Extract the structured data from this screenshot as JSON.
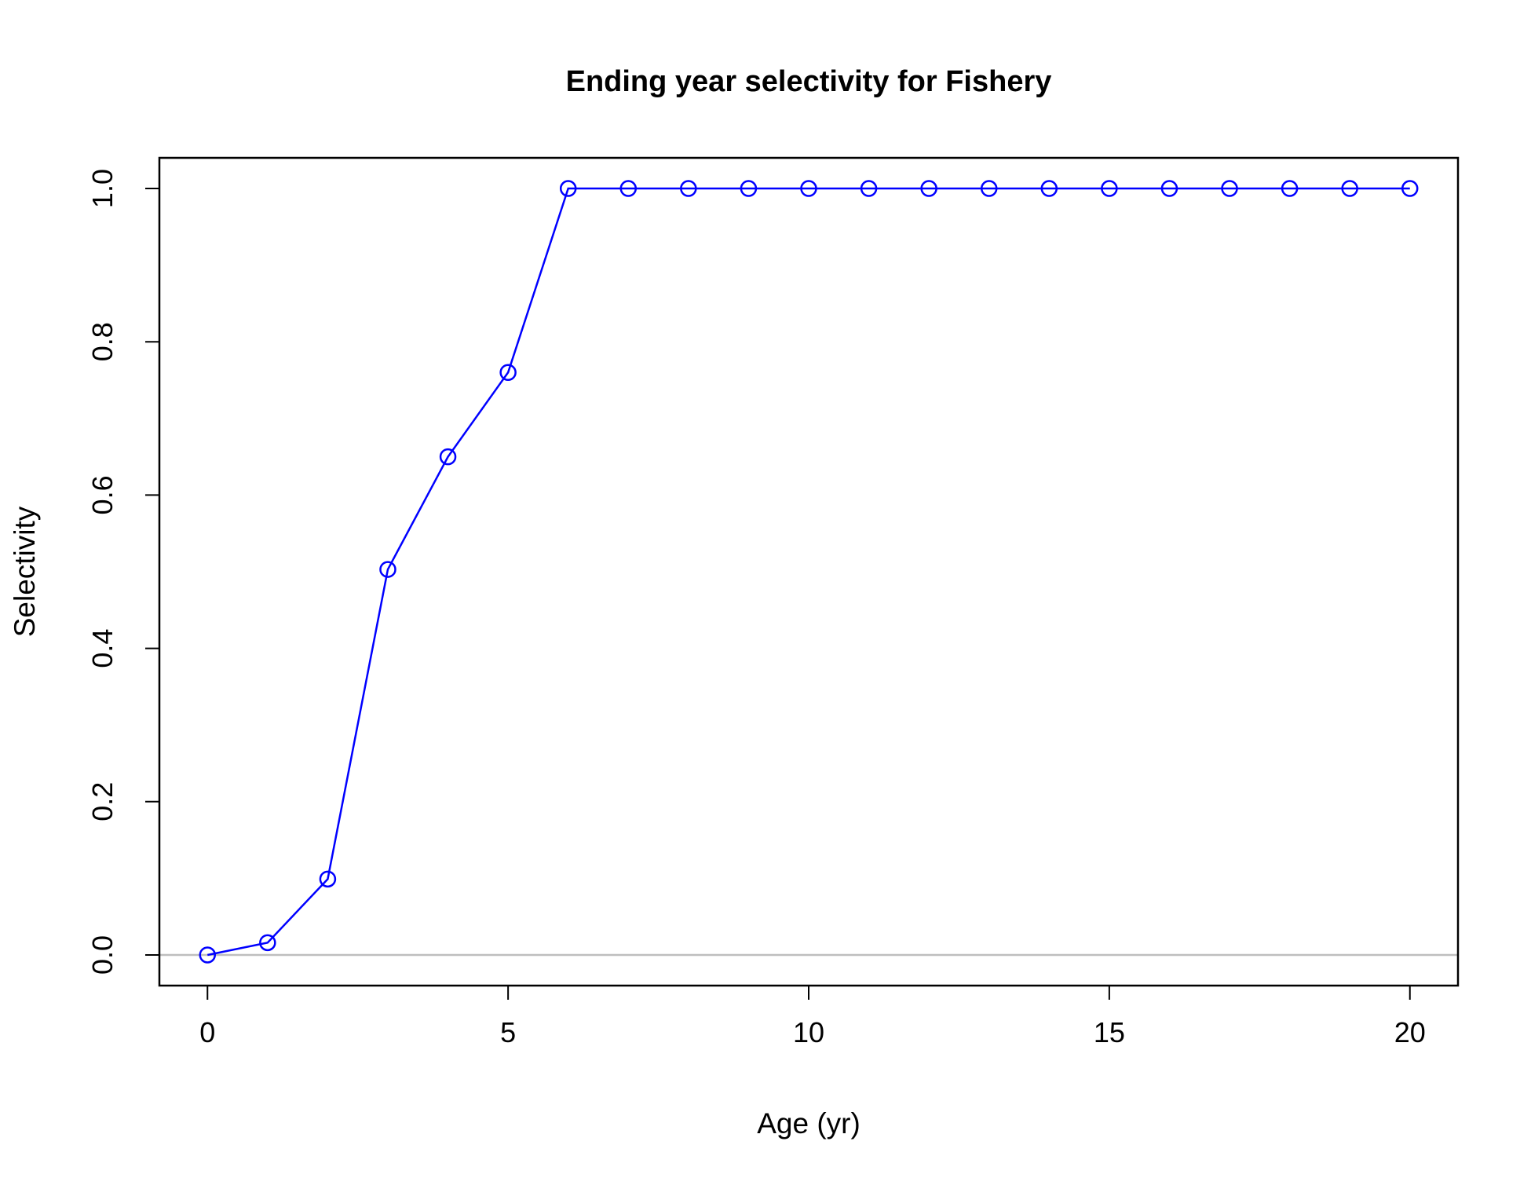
{
  "chart_data": {
    "type": "line",
    "title": "Ending year selectivity for Fishery",
    "xlabel": "Age (yr)",
    "ylabel": "Selectivity",
    "xlim": [
      -0.8,
      20.8
    ],
    "ylim": [
      -0.04,
      1.04
    ],
    "xticks": [
      0,
      5,
      10,
      15,
      20
    ],
    "yticks": [
      0.0,
      0.2,
      0.4,
      0.6,
      0.8,
      1.0
    ],
    "xtick_labels": [
      "0",
      "5",
      "10",
      "15",
      "20"
    ],
    "ytick_labels": [
      "0.0",
      "0.2",
      "0.4",
      "0.6",
      "0.8",
      "1.0"
    ],
    "reference_line_y": 0,
    "reference_line_color": "#bebebe",
    "grid": false,
    "legend": "none",
    "series": [
      {
        "color": "#0000ff",
        "marker": "open-circle",
        "x": [
          0,
          1,
          2,
          3,
          4,
          5,
          6,
          7,
          8,
          9,
          10,
          11,
          12,
          13,
          14,
          15,
          16,
          17,
          18,
          19,
          20
        ],
        "y": [
          0.0,
          0.016,
          0.099,
          0.503,
          0.65,
          0.76,
          1.0,
          1.0,
          1.0,
          1.0,
          1.0,
          1.0,
          1.0,
          1.0,
          1.0,
          1.0,
          1.0,
          1.0,
          1.0,
          1.0,
          1.0
        ]
      }
    ]
  }
}
